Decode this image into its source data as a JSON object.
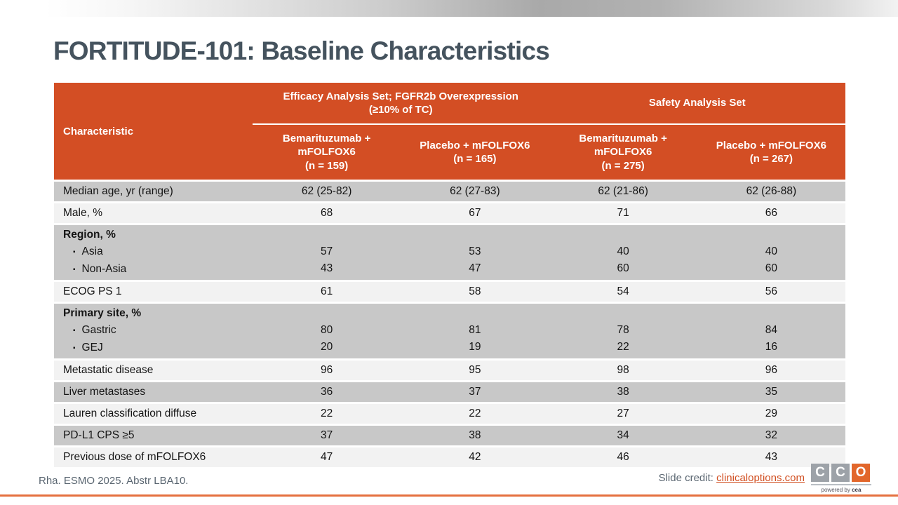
{
  "slide": {
    "title": "FORTITUDE-101: Baseline Characteristics",
    "footnote": "Rha. ESMO 2025. Abstr LBA10.",
    "credit_label": "Slide credit: ",
    "credit_link": "clinicaloptions.com"
  },
  "logo": {
    "letters": [
      "C",
      "C",
      "O"
    ],
    "tagline_prefix": "powered by ",
    "tagline_brand": "cea"
  },
  "colors": {
    "accent": "#D34E24",
    "row_dark": "#C8C8C8",
    "row_light": "#F2F2F2",
    "title": "#45535E",
    "footnote": "#5A6671",
    "link": "#D14E20",
    "line_orange": "#E5703F",
    "logo_gray": "#9DA2A8",
    "logo_orange": "#E2662B"
  },
  "table": {
    "bullet_glyph": "▪",
    "header": {
      "characteristic": "Characteristic",
      "groups": [
        {
          "line1": "Efficacy Analysis Set; FGFR2b Overexpression",
          "line2": "(≥10% of TC)"
        },
        {
          "line1": "Safety Analysis Set",
          "line2": ""
        }
      ],
      "columns": [
        {
          "line1": "Bemarituzumab +",
          "line2": "mFOLFOX6",
          "line3": "(n = 159)"
        },
        {
          "line1": "Placebo + mFOLFOX6",
          "line2": "(n = 165)",
          "line3": ""
        },
        {
          "line1": "Bemarituzumab +",
          "line2": "mFOLFOX6",
          "line3": "(n = 275)"
        },
        {
          "line1": "Placebo + mFOLFOX6",
          "line2": "(n = 267)",
          "line3": ""
        }
      ]
    },
    "rows": [
      {
        "label": "Median age, yr (range)",
        "shade": "dark",
        "values": [
          "62 (25-82)",
          "62 (27-83)",
          "62 (21-86)",
          "62 (26-88)"
        ]
      },
      {
        "label": "Male, %",
        "shade": "light",
        "values": [
          "68",
          "67",
          "71",
          "66"
        ]
      },
      {
        "label": "Region, %",
        "shade": "dark",
        "sub": [
          {
            "label": "Asia",
            "values": [
              "57",
              "53",
              "40",
              "40"
            ]
          },
          {
            "label": "Non-Asia",
            "values": [
              "43",
              "47",
              "60",
              "60"
            ]
          }
        ]
      },
      {
        "label": "ECOG PS 1",
        "shade": "light",
        "values": [
          "61",
          "58",
          "54",
          "56"
        ]
      },
      {
        "label": "Primary site, %",
        "shade": "dark",
        "sub": [
          {
            "label": "Gastric",
            "values": [
              "80",
              "81",
              "78",
              "84"
            ]
          },
          {
            "label": "GEJ",
            "values": [
              "20",
              "19",
              "22",
              "16"
            ]
          }
        ]
      },
      {
        "label": "Metastatic disease",
        "shade": "light",
        "values": [
          "96",
          "95",
          "98",
          "96"
        ]
      },
      {
        "label": "Liver metastases",
        "shade": "dark",
        "values": [
          "36",
          "37",
          "38",
          "35"
        ]
      },
      {
        "label": "Lauren classification diffuse",
        "shade": "light",
        "values": [
          "22",
          "22",
          "27",
          "29"
        ]
      },
      {
        "label": "PD-L1 CPS ≥5",
        "shade": "dark",
        "values": [
          "37",
          "38",
          "34",
          "32"
        ]
      },
      {
        "label": "Previous dose of mFOLFOX6",
        "shade": "light",
        "values": [
          "47",
          "42",
          "46",
          "43"
        ]
      }
    ]
  }
}
